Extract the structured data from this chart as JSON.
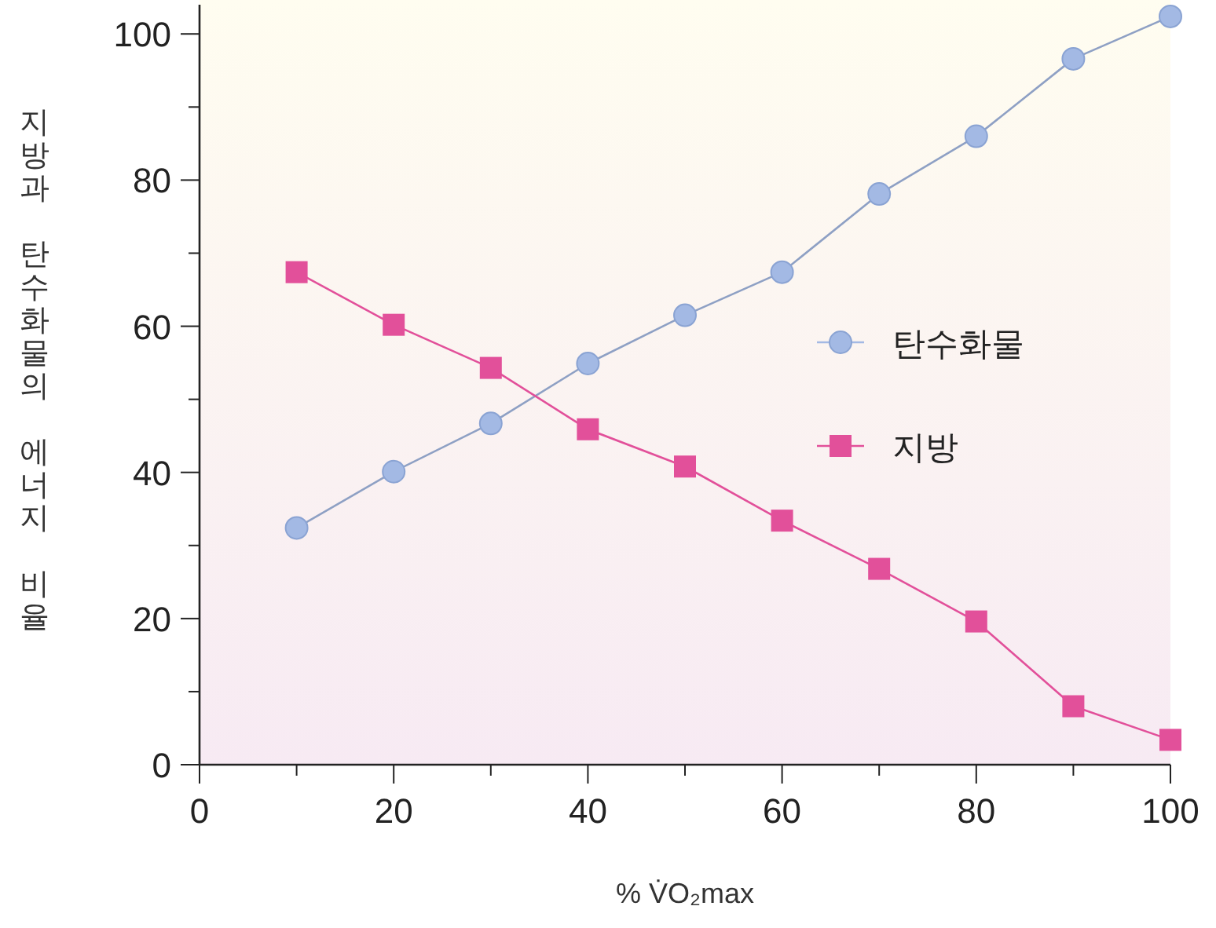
{
  "chart_data": {
    "type": "line",
    "xlabel": "% V̇O₂max",
    "ylabel": "지방과 탄수화물의 에너지 비율",
    "xlim": [
      0,
      100
    ],
    "ylim": [
      0,
      104
    ],
    "xticks": [
      0,
      {
        "value": 10,
        "label": null
      },
      20,
      {
        "value": 30,
        "label": null
      },
      40,
      {
        "value": 50,
        "label": null
      },
      60,
      {
        "value": 70,
        "label": null
      },
      80,
      {
        "value": 90,
        "label": null
      },
      100
    ],
    "yticks": [
      0,
      {
        "value": 10,
        "label": null
      },
      20,
      {
        "value": 30,
        "label": null
      },
      40,
      {
        "value": 50,
        "label": null
      },
      60,
      {
        "value": 70,
        "label": null
      },
      80,
      {
        "value": 90,
        "label": null
      },
      100
    ],
    "x": [
      10,
      20,
      30,
      40,
      50,
      60,
      70,
      80,
      90,
      100
    ],
    "series": [
      {
        "name": "탄수화물",
        "color": "#a3b9e4",
        "marker": "circle",
        "values": [
          32.4,
          40.1,
          46.7,
          54.9,
          61.5,
          67.4,
          78.1,
          86,
          96.6,
          102.4
        ]
      },
      {
        "name": "지방",
        "color": "#e2509a",
        "marker": "square",
        "values": [
          67.4,
          60.2,
          54.3,
          45.9,
          40.8,
          33.4,
          26.8,
          19.6,
          8,
          3.4
        ]
      }
    ],
    "legend": "right",
    "grid": false
  }
}
